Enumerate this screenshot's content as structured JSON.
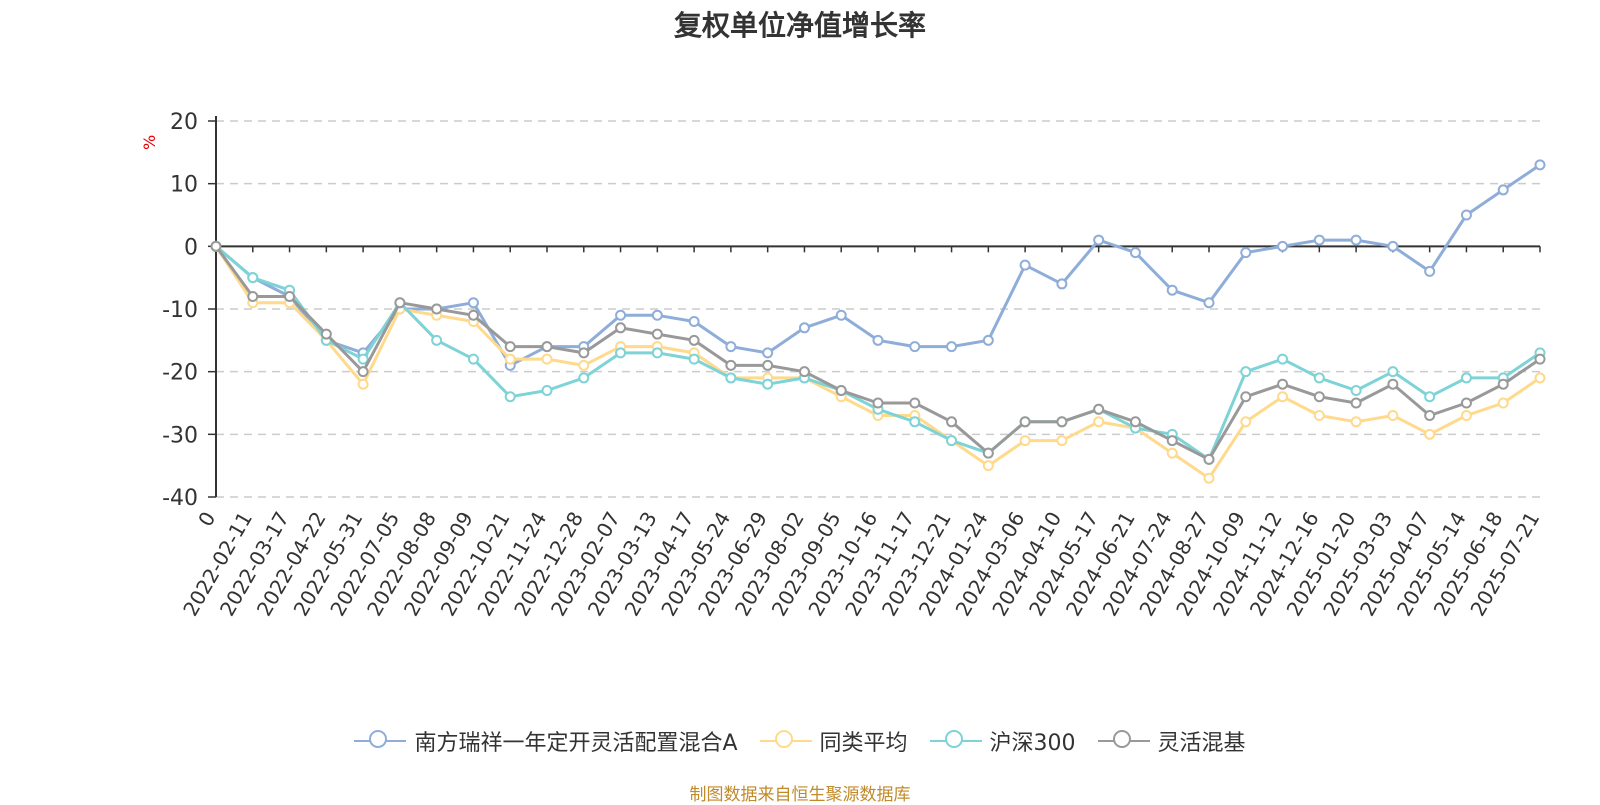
{
  "chart_data": {
    "type": "line",
    "title": "复权单位净值增长率",
    "ylabel": "%",
    "ylim": [
      -40,
      20
    ],
    "yticks": [
      20,
      10,
      0,
      -10,
      -20,
      -30,
      -40
    ],
    "grid": true,
    "legend_position": "bottom",
    "x": [
      "0",
      "2022-02-11",
      "2022-03-17",
      "2022-04-22",
      "2022-05-31",
      "2022-07-05",
      "2022-08-08",
      "2022-09-09",
      "2022-10-21",
      "2022-11-24",
      "2022-12-28",
      "2023-02-07",
      "2023-03-13",
      "2023-04-17",
      "2023-05-24",
      "2023-06-29",
      "2023-08-02",
      "2023-09-05",
      "2023-10-16",
      "2023-11-17",
      "2023-12-21",
      "2024-01-24",
      "2024-03-06",
      "2024-04-10",
      "2024-05-17",
      "2024-06-21",
      "2024-07-24",
      "2024-08-27",
      "2024-10-09",
      "2024-11-12",
      "2024-12-16",
      "2025-01-20",
      "2025-03-03",
      "2025-04-07",
      "2025-05-14",
      "2025-06-18",
      "2025-07-21"
    ],
    "series": [
      {
        "name": "南方瑞祥一年定开灵活配置混合A",
        "color": "#8eadd9",
        "values": [
          0,
          -5,
          -8,
          -15,
          -17,
          -10,
          -10,
          -9,
          -19,
          -16,
          -16,
          -11,
          -11,
          -12,
          -16,
          -17,
          -13,
          -11,
          -15,
          -16,
          -16,
          -15,
          -3,
          -6,
          1,
          -1,
          -7,
          -9,
          -1,
          0,
          1,
          1,
          0,
          -4,
          5,
          9,
          13
        ]
      },
      {
        "name": "同类平均",
        "color": "#ffd98c",
        "values": [
          0,
          -9,
          -9,
          -15,
          -22,
          -10,
          -11,
          -12,
          -18,
          -18,
          -19,
          -16,
          -16,
          -17,
          -21,
          -21,
          -21,
          -24,
          -27,
          -27,
          -31,
          -35,
          -31,
          -31,
          -28,
          -29,
          -33,
          -37,
          -28,
          -24,
          -27,
          -28,
          -27,
          -30,
          -27,
          -25,
          -21
        ]
      },
      {
        "name": "沪深300",
        "color": "#7dd3d6",
        "values": [
          0,
          -5,
          -7,
          -15,
          -18,
          -9,
          -15,
          -18,
          -24,
          -23,
          -21,
          -17,
          -17,
          -18,
          -21,
          -22,
          -21,
          -23,
          -26,
          -28,
          -31,
          -33,
          -28,
          -28,
          -26,
          -29,
          -30,
          -34,
          -20,
          -18,
          -21,
          -23,
          -20,
          -24,
          -21,
          -21,
          -17
        ]
      },
      {
        "name": "灵活混基",
        "color": "#999999",
        "values": [
          0,
          -8,
          -8,
          -14,
          -20,
          -9,
          -10,
          -11,
          -16,
          -16,
          -17,
          -13,
          -14,
          -15,
          -19,
          -19,
          -20,
          -23,
          -25,
          -25,
          -28,
          -33,
          -28,
          -28,
          -26,
          -28,
          -31,
          -34,
          -24,
          -22,
          -24,
          -25,
          -22,
          -27,
          -25,
          -22,
          -18
        ]
      }
    ]
  },
  "legend": [
    {
      "label": "南方瑞祥一年定开灵活配置混合A",
      "color": "#8eadd9"
    },
    {
      "label": "同类平均",
      "color": "#ffd98c"
    },
    {
      "label": "沪深300",
      "color": "#7dd3d6"
    },
    {
      "label": "灵活混基",
      "color": "#999999"
    }
  ],
  "source": "制图数据来自恒生聚源数据库"
}
